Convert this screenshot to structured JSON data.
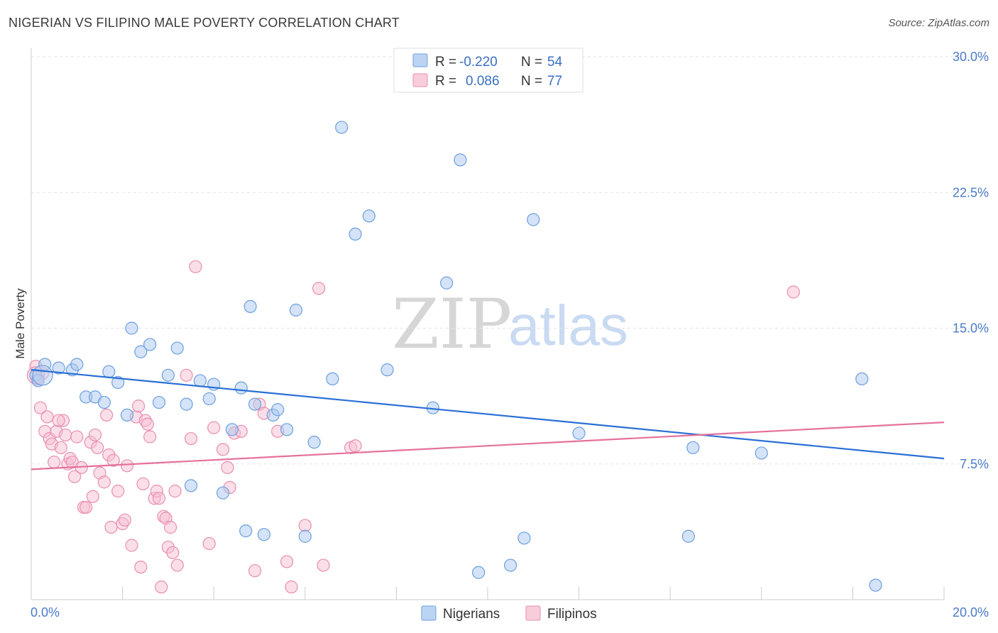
{
  "header": {
    "title": "NIGERIAN VS FILIPINO MALE POVERTY CORRELATION CHART",
    "source": "Source: ZipAtlas.com"
  },
  "watermark": {
    "zip": "ZIP",
    "atlas": "atlas"
  },
  "colors": {
    "nigerians_fill": "#a9c8f0",
    "nigerians_stroke": "#6d9fe0",
    "nigerians_line": "#2a6fd6",
    "filipinos_fill": "#f6c0d2",
    "filipinos_stroke": "#e98eb0",
    "filipinos_line": "#e5719b",
    "tick_text": "#4a7cc9"
  },
  "legend": {
    "rows": [
      {
        "r_label": "R =",
        "r_value": "-0.220",
        "n_label": "N =",
        "n_value": "54"
      },
      {
        "r_label": "R =",
        "r_value": "0.086",
        "n_label": "N =",
        "n_value": "77"
      }
    ]
  },
  "bottom_legend": {
    "nigerians": "Nigerians",
    "filipinos": "Filipinos"
  },
  "chart_data": {
    "type": "scatter",
    "title": "NIGERIAN VS FILIPINO MALE POVERTY CORRELATION CHART",
    "xlabel": "",
    "ylabel": "Male Poverty",
    "xlim": [
      0,
      20
    ],
    "ylim": [
      0,
      30
    ],
    "x_tick_labels": [
      "0.0%",
      "20.0%"
    ],
    "y_ticks": [
      7.5,
      15.0,
      22.5,
      30.0
    ],
    "y_tick_labels": [
      "7.5%",
      "15.0%",
      "22.5%",
      "30.0%"
    ],
    "grid": "horizontal dashed",
    "legend_position": "top-center",
    "series": [
      {
        "name": "Nigerians",
        "r": -0.22,
        "n": 54,
        "trend": {
          "x": [
            0,
            20
          ],
          "y": [
            12.7,
            7.8
          ]
        },
        "points": [
          [
            0.1,
            12.4
          ],
          [
            0.3,
            13.0
          ],
          [
            0.6,
            12.8
          ],
          [
            0.9,
            12.7
          ],
          [
            1.0,
            13.0
          ],
          [
            1.2,
            11.2
          ],
          [
            1.4,
            11.2
          ],
          [
            1.6,
            10.9
          ],
          [
            1.7,
            12.6
          ],
          [
            1.9,
            12.0
          ],
          [
            2.1,
            10.2
          ],
          [
            2.2,
            15.0
          ],
          [
            2.4,
            13.7
          ],
          [
            2.6,
            14.1
          ],
          [
            2.8,
            10.9
          ],
          [
            3.0,
            12.4
          ],
          [
            3.2,
            13.9
          ],
          [
            3.4,
            10.8
          ],
          [
            3.5,
            6.3
          ],
          [
            3.7,
            12.1
          ],
          [
            3.9,
            11.1
          ],
          [
            4.0,
            11.9
          ],
          [
            4.2,
            5.9
          ],
          [
            4.4,
            9.4
          ],
          [
            4.6,
            11.7
          ],
          [
            4.7,
            3.8
          ],
          [
            4.8,
            16.2
          ],
          [
            4.9,
            10.8
          ],
          [
            5.1,
            3.6
          ],
          [
            5.3,
            10.2
          ],
          [
            5.4,
            10.5
          ],
          [
            5.6,
            9.4
          ],
          [
            5.8,
            16.0
          ],
          [
            6.2,
            8.7
          ],
          [
            6.0,
            3.5
          ],
          [
            6.6,
            12.2
          ],
          [
            6.8,
            26.1
          ],
          [
            7.1,
            20.2
          ],
          [
            7.4,
            21.2
          ],
          [
            7.8,
            12.7
          ],
          [
            8.8,
            10.6
          ],
          [
            9.1,
            17.5
          ],
          [
            9.4,
            24.3
          ],
          [
            9.8,
            1.5
          ],
          [
            10.5,
            1.9
          ],
          [
            10.8,
            3.4
          ],
          [
            11.0,
            21.0
          ],
          [
            12.0,
            9.2
          ],
          [
            14.4,
            3.5
          ],
          [
            14.5,
            8.4
          ],
          [
            16.0,
            8.1
          ],
          [
            18.2,
            12.2
          ],
          [
            18.5,
            0.8
          ],
          [
            0.15,
            12.1
          ]
        ]
      },
      {
        "name": "Filipinos",
        "r": 0.086,
        "n": 77,
        "trend": {
          "x": [
            0,
            20
          ],
          "y": [
            7.2,
            9.8
          ]
        },
        "points": [
          [
            0.1,
            12.9
          ],
          [
            0.15,
            12.2
          ],
          [
            0.2,
            10.6
          ],
          [
            0.3,
            9.3
          ],
          [
            0.35,
            10.1
          ],
          [
            0.4,
            8.9
          ],
          [
            0.45,
            8.6
          ],
          [
            0.5,
            7.6
          ],
          [
            0.55,
            9.3
          ],
          [
            0.65,
            8.4
          ],
          [
            0.7,
            9.9
          ],
          [
            0.75,
            9.1
          ],
          [
            0.8,
            7.5
          ],
          [
            0.85,
            7.8
          ],
          [
            0.9,
            7.6
          ],
          [
            0.95,
            6.8
          ],
          [
            1.0,
            9.0
          ],
          [
            1.1,
            7.3
          ],
          [
            1.15,
            5.1
          ],
          [
            1.2,
            5.1
          ],
          [
            1.3,
            8.7
          ],
          [
            1.35,
            5.7
          ],
          [
            1.4,
            9.1
          ],
          [
            1.45,
            8.4
          ],
          [
            1.5,
            7.0
          ],
          [
            1.6,
            6.5
          ],
          [
            1.65,
            10.2
          ],
          [
            1.7,
            8.0
          ],
          [
            1.75,
            4.0
          ],
          [
            1.8,
            7.7
          ],
          [
            1.9,
            6.0
          ],
          [
            2.0,
            4.2
          ],
          [
            2.05,
            4.4
          ],
          [
            2.1,
            7.4
          ],
          [
            2.2,
            3.0
          ],
          [
            2.3,
            10.1
          ],
          [
            2.35,
            10.7
          ],
          [
            2.4,
            1.8
          ],
          [
            2.45,
            6.4
          ],
          [
            2.5,
            9.9
          ],
          [
            2.55,
            9.7
          ],
          [
            2.6,
            9.0
          ],
          [
            2.7,
            5.6
          ],
          [
            2.75,
            6.0
          ],
          [
            2.8,
            5.6
          ],
          [
            2.85,
            0.7
          ],
          [
            2.9,
            4.6
          ],
          [
            2.95,
            4.5
          ],
          [
            3.0,
            2.9
          ],
          [
            3.05,
            4.0
          ],
          [
            3.1,
            2.6
          ],
          [
            3.15,
            6.0
          ],
          [
            3.2,
            1.9
          ],
          [
            3.5,
            8.9
          ],
          [
            3.4,
            12.4
          ],
          [
            3.6,
            18.4
          ],
          [
            3.9,
            3.1
          ],
          [
            4.0,
            9.5
          ],
          [
            4.2,
            8.3
          ],
          [
            4.3,
            7.3
          ],
          [
            4.35,
            6.2
          ],
          [
            4.45,
            9.2
          ],
          [
            4.6,
            9.3
          ],
          [
            4.9,
            1.6
          ],
          [
            5.0,
            10.8
          ],
          [
            5.1,
            10.3
          ],
          [
            5.4,
            9.3
          ],
          [
            5.6,
            2.1
          ],
          [
            5.7,
            0.7
          ],
          [
            6.0,
            4.1
          ],
          [
            6.3,
            17.2
          ],
          [
            6.4,
            1.9
          ],
          [
            7.0,
            8.4
          ],
          [
            7.1,
            8.5
          ],
          [
            16.7,
            17.0
          ],
          [
            0.25,
            12.5
          ],
          [
            0.6,
            9.9
          ]
        ]
      }
    ]
  }
}
